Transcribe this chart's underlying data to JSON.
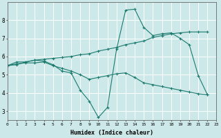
{
  "line1_x": [
    0,
    1,
    2,
    3,
    4,
    5,
    6,
    7,
    8,
    9,
    10,
    11,
    12,
    13,
    14,
    15,
    16,
    17,
    18,
    19,
    20,
    21,
    22
  ],
  "line1_y": [
    5.5,
    5.7,
    5.7,
    5.8,
    5.75,
    5.55,
    5.2,
    5.1,
    4.15,
    3.55,
    2.65,
    3.2,
    6.4,
    8.55,
    8.6,
    7.6,
    7.15,
    7.25,
    7.3,
    7.0,
    6.65,
    4.95,
    3.9
  ],
  "line2_x": [
    0,
    1,
    2,
    3,
    4,
    5,
    6,
    7,
    8,
    9,
    10,
    11,
    12,
    13,
    14,
    15,
    16,
    17,
    18,
    19,
    20,
    21,
    22
  ],
  "line2_y": [
    5.5,
    5.55,
    5.7,
    5.8,
    5.85,
    5.9,
    5.95,
    6.0,
    6.1,
    6.15,
    6.3,
    6.4,
    6.5,
    6.65,
    6.75,
    6.85,
    7.05,
    7.15,
    7.25,
    7.3,
    7.35,
    7.35,
    7.35
  ],
  "line3_x": [
    0,
    1,
    2,
    3,
    4,
    5,
    6,
    7,
    8,
    9,
    10,
    11,
    12,
    13,
    14,
    15,
    16,
    17,
    18,
    19,
    20,
    21,
    22
  ],
  "line3_y": [
    5.5,
    5.6,
    5.65,
    5.65,
    5.7,
    5.5,
    5.35,
    5.2,
    5.0,
    4.75,
    4.85,
    4.95,
    5.05,
    5.1,
    4.85,
    4.55,
    4.45,
    4.35,
    4.25,
    4.15,
    4.05,
    3.95,
    3.9
  ],
  "color": "#1a7a6e",
  "bg_color": "#cde8e8",
  "grid_major_color": "#ffffff",
  "grid_minor_color": "#ddeedd",
  "xlabel": "Humidex (Indice chaleur)",
  "xlim": [
    0,
    23
  ],
  "ylim": [
    2.5,
    9.0
  ],
  "xticks": [
    0,
    1,
    2,
    3,
    4,
    5,
    6,
    7,
    8,
    9,
    10,
    11,
    12,
    13,
    14,
    15,
    16,
    17,
    18,
    19,
    20,
    21,
    22,
    23
  ],
  "yticks": [
    3,
    4,
    5,
    6,
    7,
    8
  ]
}
